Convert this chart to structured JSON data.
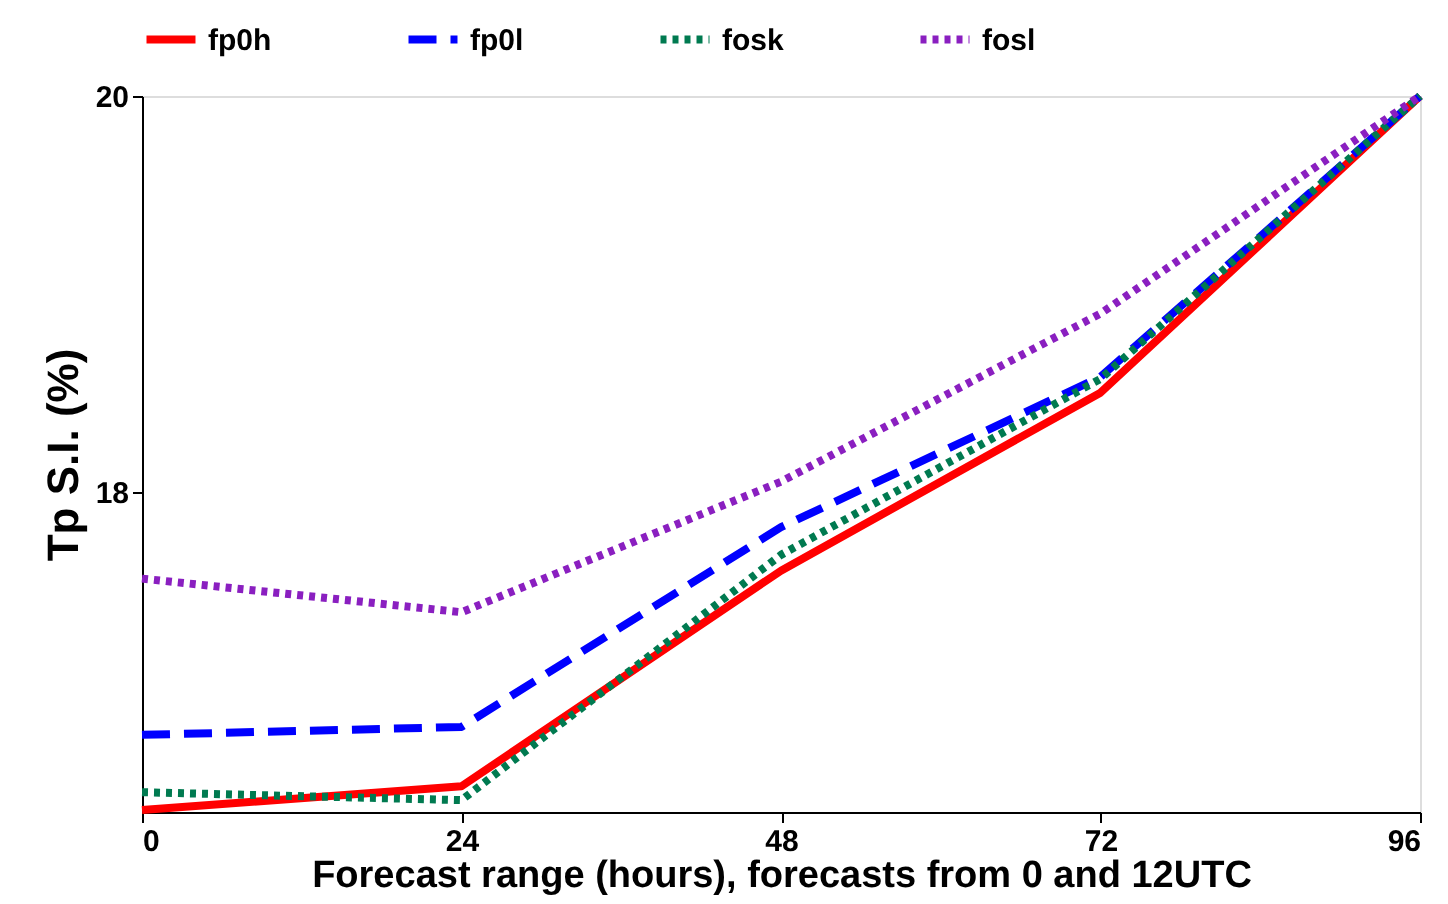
{
  "chart_data": {
    "type": "line",
    "xlabel": "Forecast range (hours), forecasts from 0 and 12UTC",
    "ylabel": "Tp S.I. (%)",
    "x": [
      0,
      24,
      48,
      72,
      96
    ],
    "xlim": [
      0,
      96
    ],
    "xticks": [
      0,
      24,
      48,
      72,
      96
    ],
    "ylim": [
      16.38,
      20
    ],
    "yticks": [
      18,
      20
    ],
    "grid": false,
    "legend": "top",
    "marker": "none",
    "series": [
      {
        "name": "fp0h",
        "color": "#ff0000",
        "line_style": "solid",
        "values": [
          16.39,
          16.51,
          17.6,
          18.5,
          20
        ]
      },
      {
        "name": "fp0l",
        "color": "#0000ff",
        "line_style": "dashed",
        "values": [
          16.77,
          16.81,
          17.82,
          18.58,
          20
        ]
      },
      {
        "name": "fosk",
        "color": "#007a50",
        "line_style": "dotted",
        "values": [
          16.48,
          16.44,
          17.68,
          18.57,
          20
        ]
      },
      {
        "name": "fosl",
        "color": "#8a1fc0",
        "line_style": "dotted",
        "values": [
          17.56,
          17.39,
          18.05,
          18.9,
          20
        ]
      }
    ]
  }
}
